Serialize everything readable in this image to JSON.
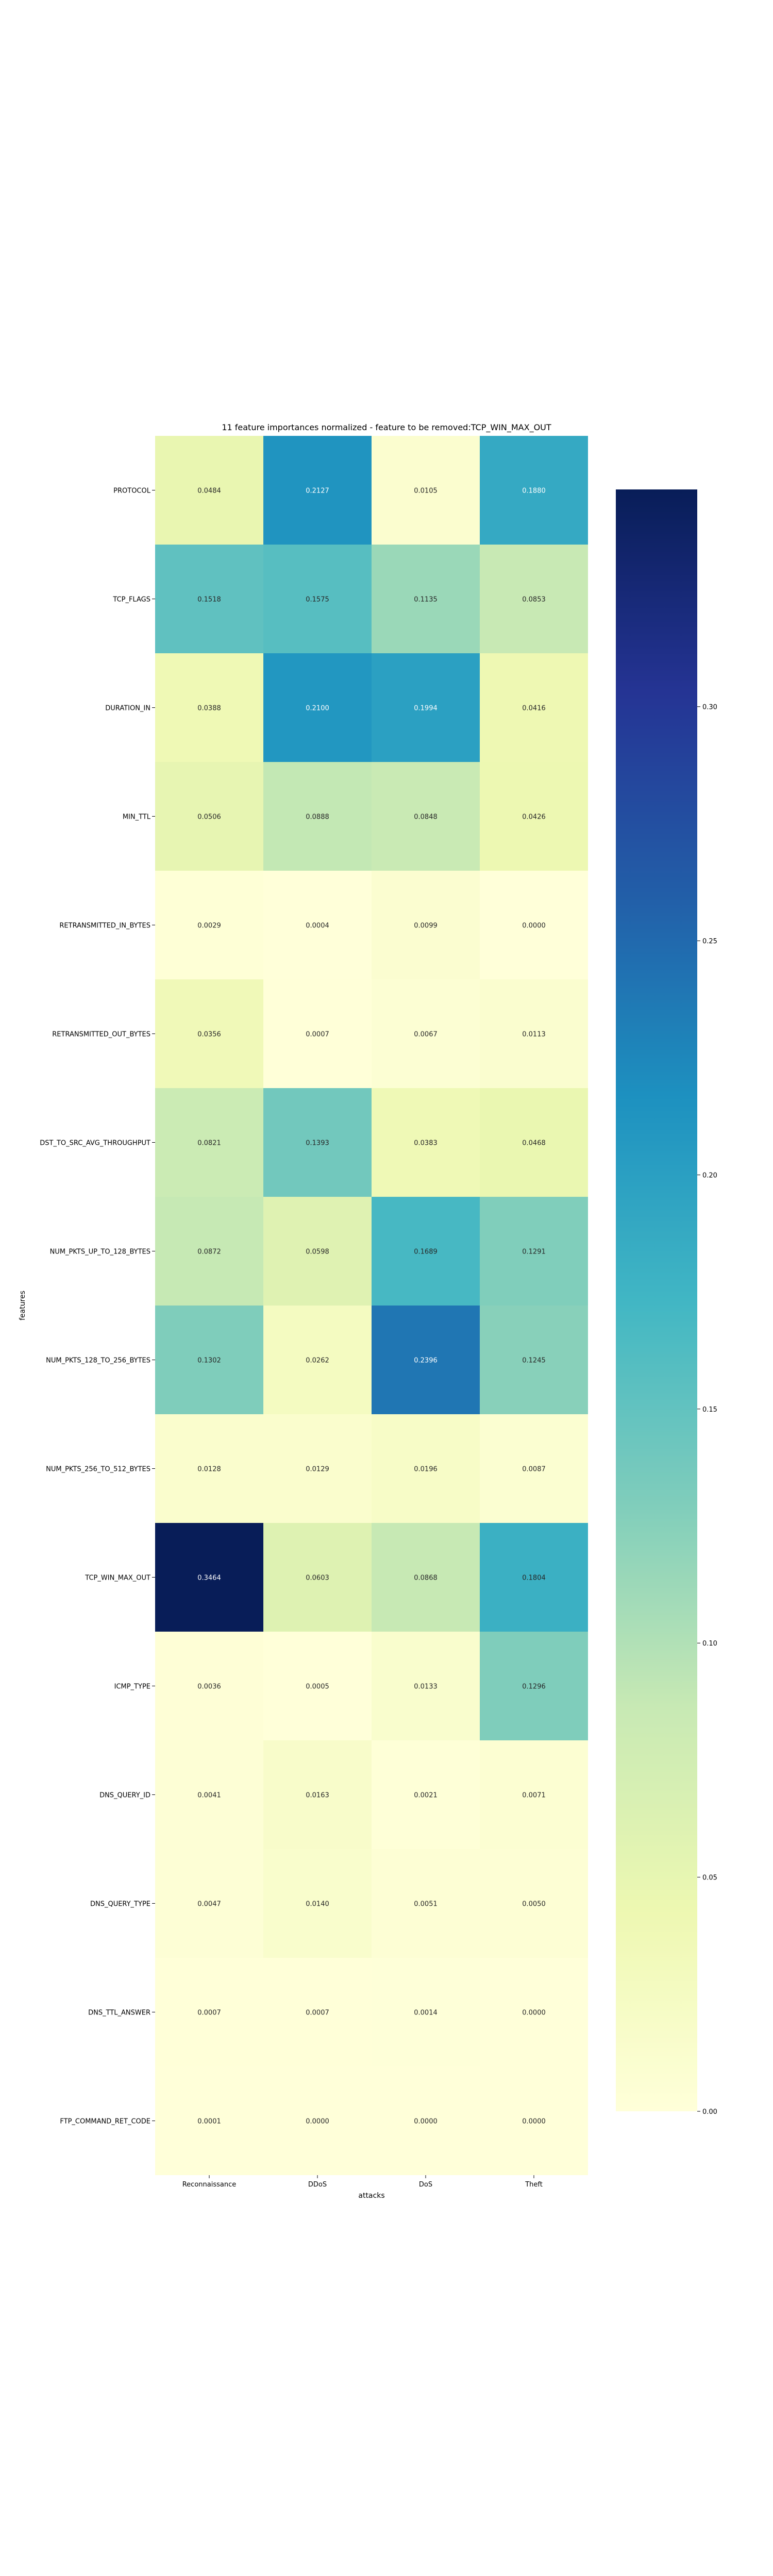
{
  "chart_data": {
    "type": "heatmap",
    "title": "11 feature importances normalized - feature to be removed:TCP_WIN_MAX_OUT",
    "xlabel": "attacks",
    "ylabel": "features",
    "x_categories": [
      "Reconnaissance",
      "DDoS",
      "DoS",
      "Theft"
    ],
    "y_categories": [
      "PROTOCOL",
      "TCP_FLAGS",
      "DURATION_IN",
      "MIN_TTL",
      "RETRANSMITTED_IN_BYTES",
      "RETRANSMITTED_OUT_BYTES",
      "DST_TO_SRC_AVG_THROUGHPUT",
      "NUM_PKTS_UP_TO_128_BYTES",
      "NUM_PKTS_128_TO_256_BYTES",
      "NUM_PKTS_256_TO_512_BYTES",
      "TCP_WIN_MAX_OUT",
      "ICMP_TYPE",
      "DNS_QUERY_ID",
      "DNS_QUERY_TYPE",
      "DNS_TTL_ANSWER",
      "FTP_COMMAND_RET_CODE"
    ],
    "values": [
      [
        0.0484,
        0.2127,
        0.0105,
        0.188
      ],
      [
        0.1518,
        0.1575,
        0.1135,
        0.0853
      ],
      [
        0.0388,
        0.21,
        0.1994,
        0.0416
      ],
      [
        0.0506,
        0.0888,
        0.0848,
        0.0426
      ],
      [
        0.0029,
        0.0004,
        0.0099,
        0.0
      ],
      [
        0.0356,
        0.0007,
        0.0067,
        0.0113
      ],
      [
        0.0821,
        0.1393,
        0.0383,
        0.0468
      ],
      [
        0.0872,
        0.0598,
        0.1689,
        0.1291
      ],
      [
        0.1302,
        0.0262,
        0.2396,
        0.1245
      ],
      [
        0.0128,
        0.0129,
        0.0196,
        0.0087
      ],
      [
        0.3464,
        0.0603,
        0.0868,
        0.1804
      ],
      [
        0.0036,
        0.0005,
        0.0133,
        0.1296
      ],
      [
        0.0041,
        0.0163,
        0.0021,
        0.0071
      ],
      [
        0.0047,
        0.014,
        0.0051,
        0.005
      ],
      [
        0.0007,
        0.0007,
        0.0014,
        0.0
      ],
      [
        0.0001,
        0.0,
        0.0,
        0.0
      ]
    ],
    "colormap": "YlGnBu",
    "colorbar": {
      "range": [
        0.0,
        0.3464
      ],
      "ticks": [
        0.0,
        0.05,
        0.1,
        0.15,
        0.2,
        0.25,
        0.3
      ],
      "tick_labels": [
        "0.00",
        "0.05",
        "0.10",
        "0.15",
        "0.20",
        "0.25",
        "0.30"
      ]
    },
    "annotations": true,
    "grid": false
  }
}
